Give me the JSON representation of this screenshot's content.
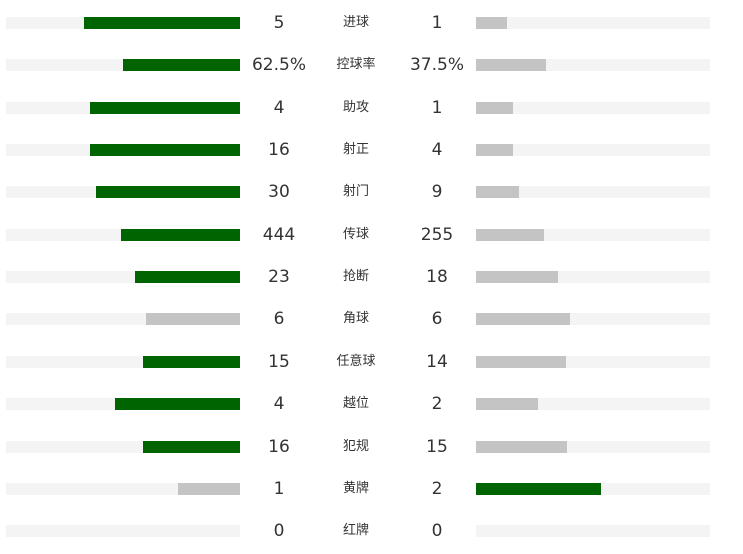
{
  "colors": {
    "leader": "#006400",
    "other": "#c4c4c4",
    "track": "#f4f4f4"
  },
  "stats": [
    {
      "label": "进球",
      "left": "5",
      "right": "1",
      "left_fraction": 0.667,
      "right_fraction": 0.133,
      "left_leader": true,
      "right_leader": false
    },
    {
      "label": "控球率",
      "left": "62.5%",
      "right": "37.5%",
      "left_fraction": 0.5,
      "right_fraction": 0.3,
      "left_leader": true,
      "right_leader": false
    },
    {
      "label": "助攻",
      "left": "4",
      "right": "1",
      "left_fraction": 0.64,
      "right_fraction": 0.16,
      "left_leader": true,
      "right_leader": false
    },
    {
      "label": "射正",
      "left": "16",
      "right": "4",
      "left_fraction": 0.64,
      "right_fraction": 0.16,
      "left_leader": true,
      "right_leader": false
    },
    {
      "label": "射门",
      "left": "30",
      "right": "9",
      "left_fraction": 0.615,
      "right_fraction": 0.185,
      "left_leader": true,
      "right_leader": false
    },
    {
      "label": "传球",
      "left": "444",
      "right": "255",
      "left_fraction": 0.508,
      "right_fraction": 0.292,
      "left_leader": true,
      "right_leader": false
    },
    {
      "label": "抢断",
      "left": "23",
      "right": "18",
      "left_fraction": 0.449,
      "right_fraction": 0.351,
      "left_leader": true,
      "right_leader": false
    },
    {
      "label": "角球",
      "left": "6",
      "right": "6",
      "left_fraction": 0.4,
      "right_fraction": 0.4,
      "left_leader": false,
      "right_leader": false
    },
    {
      "label": "任意球",
      "left": "15",
      "right": "14",
      "left_fraction": 0.414,
      "right_fraction": 0.386,
      "left_leader": true,
      "right_leader": false
    },
    {
      "label": "越位",
      "left": "4",
      "right": "2",
      "left_fraction": 0.533,
      "right_fraction": 0.267,
      "left_leader": true,
      "right_leader": false
    },
    {
      "label": "犯规",
      "left": "16",
      "right": "15",
      "left_fraction": 0.413,
      "right_fraction": 0.387,
      "left_leader": true,
      "right_leader": false
    },
    {
      "label": "黄牌",
      "left": "1",
      "right": "2",
      "left_fraction": 0.267,
      "right_fraction": 0.533,
      "left_leader": false,
      "right_leader": true
    },
    {
      "label": "红牌",
      "left": "0",
      "right": "0",
      "left_fraction": 0,
      "right_fraction": 0,
      "left_leader": false,
      "right_leader": false
    }
  ]
}
